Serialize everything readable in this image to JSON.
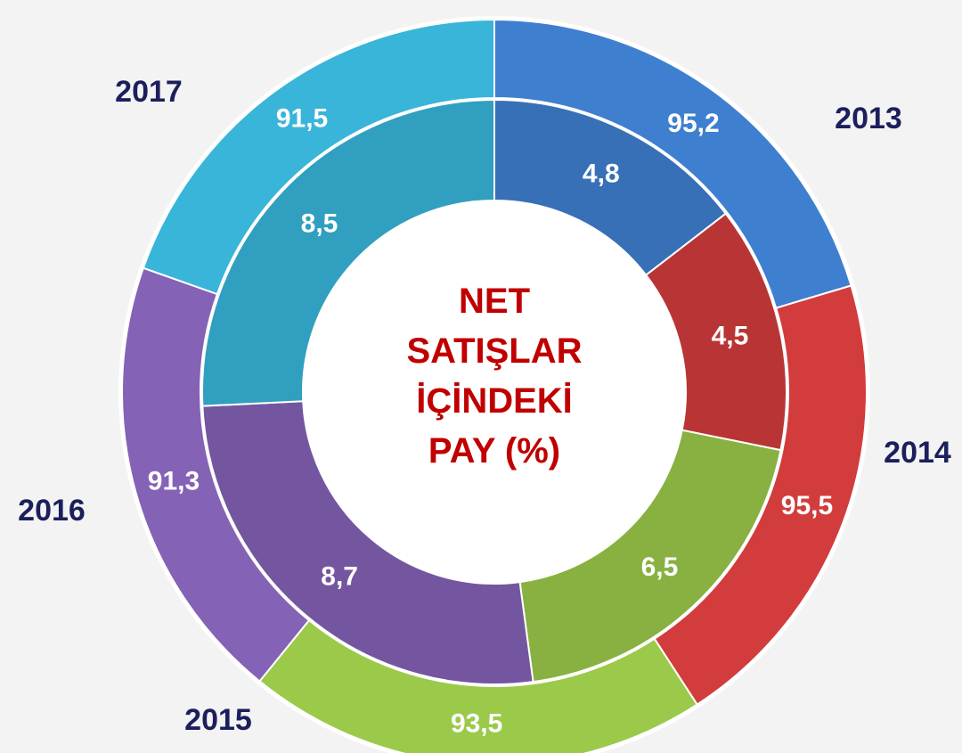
{
  "chart_data": {
    "type": "donut",
    "title": "NET SATIŞLAR İÇİNDEKİ PAY (%)",
    "categories": [
      "2013",
      "2014",
      "2015",
      "2016",
      "2017"
    ],
    "colors": [
      "#3f7fd0",
      "#d23c3c",
      "#9bc94a",
      "#8462b6",
      "#38b5d9"
    ],
    "series": [
      {
        "values": [
          95.2,
          95.5,
          93.5,
          91.3,
          91.5
        ],
        "value_labels": [
          "95,2",
          "95,5",
          "93,5",
          "91,3",
          "91,5"
        ]
      },
      {
        "values": [
          4.8,
          4.5,
          6.5,
          8.7,
          8.5
        ],
        "value_labels": [
          "4,8",
          "4,5",
          "6,5",
          "8,7",
          "8,5"
        ]
      }
    ]
  }
}
